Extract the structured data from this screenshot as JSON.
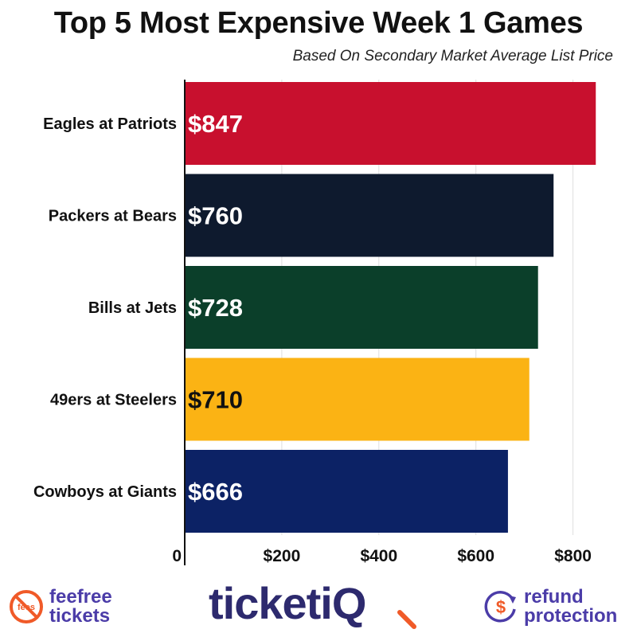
{
  "chart_data": {
    "type": "bar",
    "orientation": "horizontal",
    "title": "Top 5 Most Expensive Week 1 Games",
    "subtitle": "Based On Secondary Market Average List Price",
    "categories": [
      "Eagles at Patriots",
      "Packers at Bears",
      "Bills at Jets",
      "49ers at Steelers",
      "Cowboys at Giants"
    ],
    "values": [
      847,
      760,
      728,
      710,
      666
    ],
    "value_labels": [
      "$847",
      "$760",
      "$728",
      "$710",
      "$666"
    ],
    "bar_colors": [
      "#c8102e",
      "#0e1a2e",
      "#0b3f2a",
      "#fbb314",
      "#0c2265"
    ],
    "value_label_colors": [
      "#ffffff",
      "#ffffff",
      "#ffffff",
      "#111111",
      "#ffffff"
    ],
    "x_ticks": [
      0,
      200,
      400,
      600,
      800
    ],
    "x_tick_labels": [
      "0",
      "$200",
      "$400",
      "$600",
      "$800"
    ],
    "xlim": [
      0,
      880
    ],
    "grid": true,
    "legend": "none"
  },
  "footer": {
    "feefree": {
      "line1": "feefree",
      "line2": "tickets",
      "icon_text": "fees",
      "color": "#4b3ca8"
    },
    "brand": {
      "text": "ticketiQ",
      "color": "#2d2a6e",
      "accent": "#f05a28"
    },
    "refund": {
      "line1": "refund",
      "line2": "protection",
      "color": "#4b3ca8",
      "accent": "#f05a28"
    }
  }
}
